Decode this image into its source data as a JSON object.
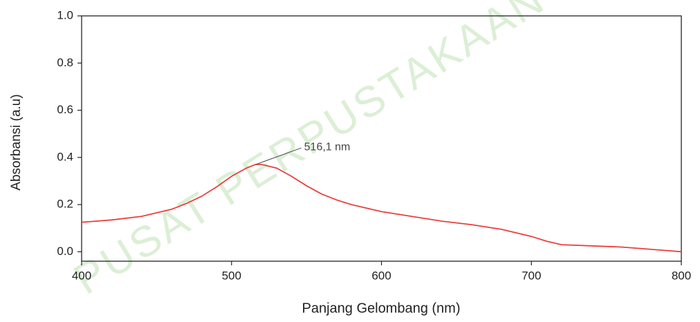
{
  "chart_data": {
    "type": "line",
    "watermark": "PUSAT PERPUSTAKAAN",
    "xlabel": "Panjang Gelombang (nm)",
    "ylabel": "Absorbansi (a.u)",
    "x": [
      400,
      420,
      440,
      450,
      460,
      470,
      480,
      490,
      500,
      510,
      516,
      520,
      530,
      540,
      550,
      560,
      570,
      580,
      600,
      620,
      640,
      660,
      680,
      700,
      710,
      720,
      740,
      760,
      780,
      800
    ],
    "series": [
      {
        "name": "Absorbansi",
        "color": "#e8413c",
        "values": [
          0.125,
          0.135,
          0.15,
          0.165,
          0.18,
          0.205,
          0.235,
          0.275,
          0.32,
          0.355,
          0.37,
          0.37,
          0.355,
          0.32,
          0.28,
          0.245,
          0.22,
          0.2,
          0.17,
          0.15,
          0.13,
          0.115,
          0.095,
          0.065,
          0.045,
          0.03,
          0.025,
          0.02,
          0.01,
          0.0
        ]
      }
    ],
    "annotations": [
      {
        "text": "516,1 nm",
        "x": 516.1,
        "y": 0.37
      }
    ],
    "xlim": [
      400,
      800
    ],
    "xticks": [
      400,
      500,
      600,
      700,
      800
    ],
    "ylim": [
      -0.04,
      1.0
    ],
    "yticks": [
      {
        "value": 0,
        "label": "0.0"
      },
      0.2,
      0.4,
      0.6,
      0.8,
      {
        "value": 1,
        "label": "1.0"
      }
    ]
  }
}
